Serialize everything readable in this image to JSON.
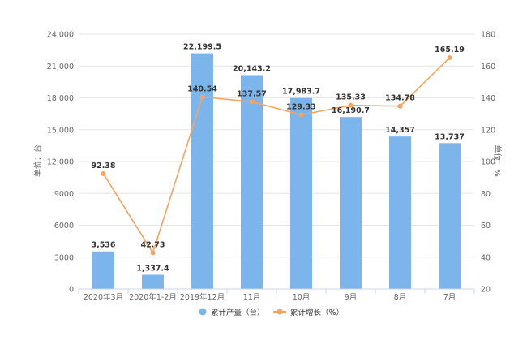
{
  "chart_data": {
    "type": "bar+line",
    "categories": [
      "2020年3月",
      "2020年1-2月",
      "2019年12月",
      "11月",
      "10月",
      "9月",
      "8月",
      "7月"
    ],
    "series": [
      {
        "name": "累计产量（台）",
        "type": "bar",
        "axis": "left",
        "values": [
          3536,
          1337.4,
          22199.5,
          20143.2,
          17983.7,
          16190.7,
          14357,
          13737
        ],
        "labels": [
          "3,536",
          "1,337.4",
          "22,199.5",
          "20,143.2",
          "17,983.7",
          "16,190.7",
          "14,357",
          "13,737"
        ]
      },
      {
        "name": "累计增长（%）",
        "type": "line",
        "axis": "right",
        "values": [
          92.38,
          42.73,
          140.54,
          137.57,
          129.33,
          135.33,
          134.78,
          165.19
        ],
        "labels": [
          "92.38",
          "42.73",
          "140.54",
          "137.57",
          "129.33",
          "135.33",
          "134.78",
          "165.19"
        ]
      }
    ],
    "y_left": {
      "label": "单位：台",
      "min": 0,
      "max": 24000,
      "ticks": [
        0,
        3000,
        6000,
        9000,
        12000,
        15000,
        18000,
        21000,
        24000
      ],
      "tick_labels": [
        "0",
        "3000",
        "6000",
        "9000",
        "12,000",
        "15,000",
        "18,000",
        "21,000",
        "24,000"
      ]
    },
    "y_right": {
      "label": "单位：%",
      "min": 20,
      "max": 180,
      "ticks": [
        20,
        40,
        60,
        80,
        100,
        120,
        140,
        160,
        180
      ],
      "tick_labels": [
        "20",
        "40",
        "60",
        "80",
        "100",
        "120",
        "140",
        "160",
        "180"
      ]
    },
    "grid": true,
    "legend_position": "bottom",
    "colors": {
      "bar": "#7cb5ec",
      "line": "#f7a35c"
    }
  }
}
